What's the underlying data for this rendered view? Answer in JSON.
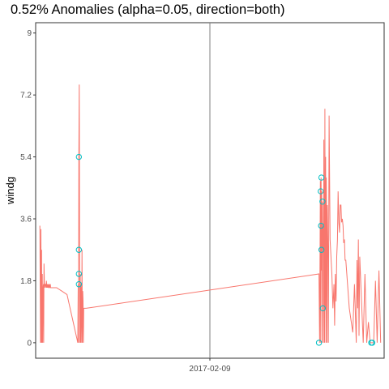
{
  "chart_data": {
    "type": "line",
    "title": "0.52% Anomalies (alpha=0.05, direction=both)",
    "ylabel": "windg",
    "xlabel": "",
    "y_ticks": [
      "0",
      "1.8",
      "3.6",
      "5.4",
      "7.2",
      "9"
    ],
    "y_tick_values": [
      0,
      1.8,
      3.6,
      5.4,
      7.2,
      9
    ],
    "ylim": [
      -0.45,
      9.3
    ],
    "x_ticks": [
      "2017-02-09"
    ],
    "x_tick_values": [
      0.5
    ],
    "xlim": [
      0,
      1
    ],
    "grid": false,
    "colors": {
      "series": "#F8766D",
      "anomaly": "#00BFC4",
      "reference_line": "#808080",
      "border": "#333333"
    },
    "series": [
      {
        "x": [
          0.012,
          0.014,
          0.015,
          0.016,
          0.017,
          0.018,
          0.019,
          0.02,
          0.021,
          0.022,
          0.023,
          0.024,
          0.025,
          0.026,
          0.027,
          0.028,
          0.03,
          0.031,
          0.032,
          0.033,
          0.034,
          0.035,
          0.036,
          0.037,
          0.038,
          0.039,
          0.04,
          0.041,
          0.042,
          0.043,
          0.06,
          0.075,
          0.09,
          0.121,
          0.122,
          0.123,
          0.124,
          0.125,
          0.126,
          0.127,
          0.128,
          0.129,
          0.13,
          0.131,
          0.132,
          0.133,
          0.134,
          0.135,
          0.136,
          0.137,
          0.138,
          0.14,
          0.145,
          0.813,
          0.815,
          0.817,
          0.818,
          0.819,
          0.82,
          0.821,
          0.822,
          0.823,
          0.824,
          0.825,
          0.826,
          0.827,
          0.828,
          0.829,
          0.83,
          0.831,
          0.832,
          0.833,
          0.834,
          0.835,
          0.836,
          0.837,
          0.838,
          0.839,
          0.84,
          0.842,
          0.845,
          0.85,
          0.853,
          0.856,
          0.858,
          0.86,
          0.862,
          0.864,
          0.866,
          0.868,
          0.87,
          0.872,
          0.874,
          0.876,
          0.878,
          0.88,
          0.882,
          0.884,
          0.886,
          0.888,
          0.89,
          0.9,
          0.91,
          0.915,
          0.92,
          0.922,
          0.924,
          0.926,
          0.928,
          0.93,
          0.935,
          0.94,
          0.945,
          0.95,
          0.955,
          0.96,
          0.965,
          0.97,
          0.975,
          0.98,
          0.985,
          0.99
        ],
        "values": [
          3.4,
          0.0,
          3.3,
          0.0,
          2.7,
          0.0,
          2.0,
          0.0,
          1.5,
          1.7,
          0.0,
          2.3,
          1.7,
          1.6,
          1.7,
          1.7,
          1.6,
          1.8,
          1.6,
          1.7,
          1.6,
          1.7,
          1.6,
          1.7,
          1.6,
          1.6,
          1.7,
          1.6,
          1.7,
          1.6,
          1.6,
          1.5,
          1.4,
          0.0,
          1.7,
          0.0,
          5.4,
          7.5,
          2.7,
          0.0,
          2.0,
          0.0,
          1.7,
          1.2,
          0.0,
          2.7,
          0.0,
          1.5,
          1.2,
          0.0,
          1.0,
          1.0,
          1.0,
          2.0,
          0.0,
          4.7,
          0.0,
          4.8,
          2.1,
          4.4,
          0.0,
          4.1,
          2.7,
          3.4,
          0.0,
          5.9,
          2.6,
          0.0,
          6.8,
          1.0,
          5.4,
          0.0,
          4.8,
          3.1,
          0.0,
          4.0,
          3.3,
          2.4,
          0.0,
          6.6,
          3.0,
          2.0,
          1.0,
          1.7,
          0.5,
          2.0,
          1.2,
          2.5,
          3.0,
          4.4,
          3.5,
          3.2,
          4.0,
          4.0,
          3.5,
          3.6,
          3.4,
          2.9,
          3.0,
          2.4,
          2.4,
          1.0,
          0.3,
          1.7,
          0.0,
          2.4,
          1.0,
          3.0,
          0.2,
          2.5,
          1.2,
          0.0,
          2.0,
          0.0,
          0.6,
          0.0,
          0.0,
          0.0,
          1.8,
          0.0,
          2.1,
          0.0
        ]
      }
    ],
    "anomalies": [
      {
        "x": 0.124,
        "y": 5.4
      },
      {
        "x": 0.124,
        "y": 2.7
      },
      {
        "x": 0.124,
        "y": 2.0
      },
      {
        "x": 0.124,
        "y": 1.7
      },
      {
        "x": 0.813,
        "y": 0.0
      },
      {
        "x": 0.82,
        "y": 4.8
      },
      {
        "x": 0.818,
        "y": 4.4
      },
      {
        "x": 0.823,
        "y": 4.1
      },
      {
        "x": 0.819,
        "y": 3.4
      },
      {
        "x": 0.82,
        "y": 2.7
      },
      {
        "x": 0.824,
        "y": 1.0
      },
      {
        "x": 0.963,
        "y": 0.0
      },
      {
        "x": 0.966,
        "y": 0.0
      }
    ],
    "reference_line_x": 0.5
  }
}
